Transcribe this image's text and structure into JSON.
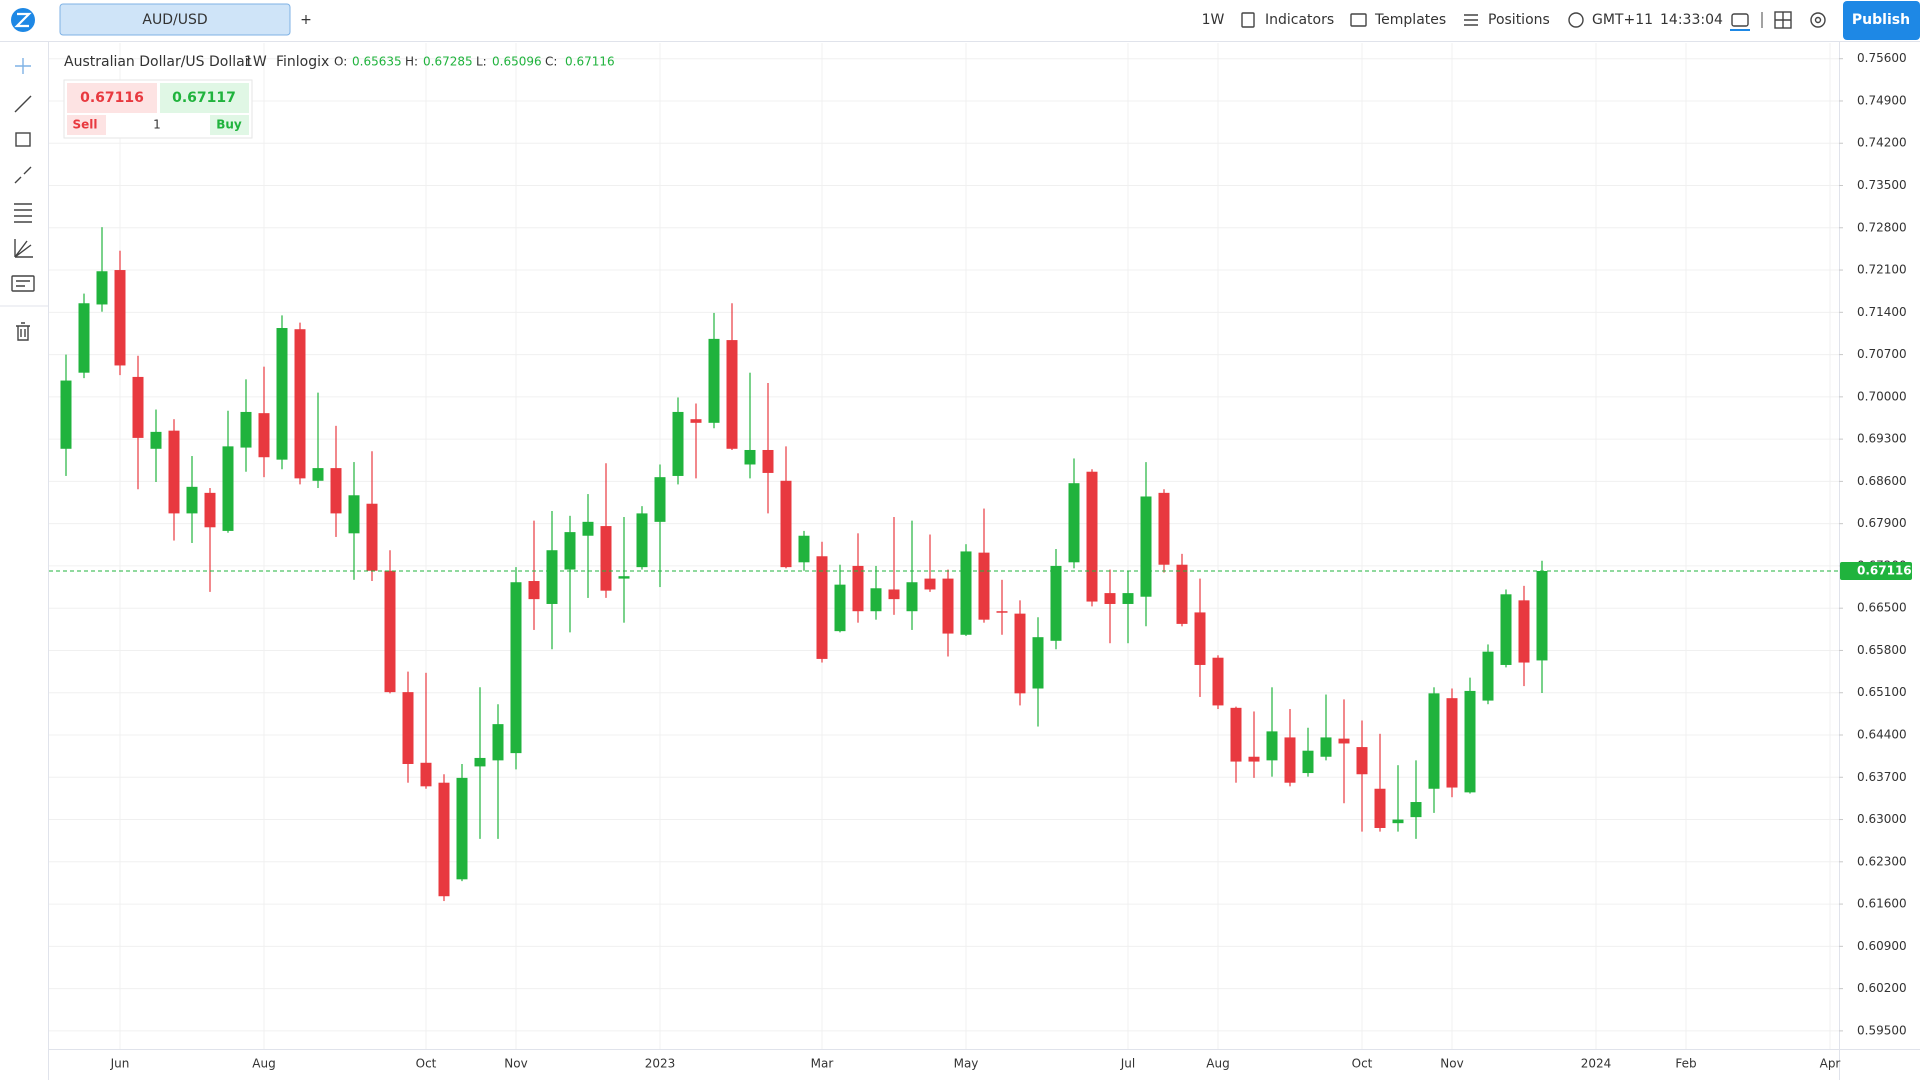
{
  "toolbar": {
    "symbol": "AUD/USD",
    "add": "+",
    "interval": "1W",
    "menu": [
      "Indicators",
      "Templates",
      "Positions"
    ],
    "timezone": "GMT+11",
    "time": "14:33:04",
    "publish": "Publish"
  },
  "trade": {
    "sell_label": "Sell",
    "buy_label": "Buy",
    "buy_price": 0.67117,
    "quantity": 1
  },
  "chart_data": {
    "type": "candlestick",
    "title": "Australian Dollar/US Dollar",
    "source": "Finlogix",
    "ohlc_labels": [
      "O:",
      "H:",
      "L:",
      "C:"
    ],
    "up_color": "#20b33d",
    "down_color": "#e8393f",
    "grid": true,
    "categories": [
      null,
      null,
      null,
      "Jun",
      null,
      null,
      null,
      null,
      null,
      null,
      null,
      "Aug",
      null,
      null,
      null,
      null,
      null,
      null,
      null,
      null,
      "Oct",
      null,
      null,
      null,
      null,
      "Nov",
      null,
      null,
      null,
      null,
      null,
      null,
      null,
      "2023",
      null,
      null,
      null,
      null,
      null,
      null,
      null,
      null,
      "Mar",
      null,
      null,
      null,
      null,
      null,
      null,
      null,
      "May",
      null,
      null,
      null,
      null,
      null,
      null,
      null,
      null,
      "Jul",
      null,
      null,
      null,
      null,
      "Aug",
      null,
      null,
      null,
      null,
      null,
      null,
      null,
      "Oct",
      null,
      null,
      null,
      null,
      "Nov",
      null,
      null,
      null,
      null,
      null,
      null,
      null,
      "2024",
      null,
      null,
      null,
      null,
      "Feb",
      null,
      null,
      null,
      null,
      null,
      null,
      null,
      "Apr"
    ],
    "open": [
      0.6914,
      0.704,
      0.7153,
      0.721,
      0.7033,
      0.6914,
      0.6944,
      0.6807,
      0.6841,
      0.6778,
      0.6916,
      0.6973,
      0.6896,
      0.7112,
      0.6861,
      0.6882,
      0.6774,
      0.6823,
      0.6712,
      0.6511,
      0.6394,
      0.6361,
      0.6201,
      0.6388,
      0.6398,
      0.641,
      0.6695,
      0.6657,
      0.6714,
      0.677,
      0.6786,
      0.6699,
      0.6718,
      0.6793,
      0.6869,
      0.6963,
      0.6957,
      0.7094,
      0.6888,
      0.6912,
      0.6861,
      0.6726,
      0.6736,
      0.6612,
      0.672,
      0.6645,
      0.6681,
      0.6645,
      0.6699,
      0.6699,
      0.6606,
      0.6742,
      0.6645,
      0.6641,
      0.6517,
      0.6596,
      0.6726,
      0.6876,
      0.6675,
      0.6657,
      0.6669,
      0.6841,
      0.6722,
      0.6643,
      0.6568,
      0.6485,
      0.6404,
      0.6398,
      0.6436,
      0.6377,
      0.6404,
      0.6434,
      0.642,
      0.6351,
      0.6294,
      0.6304,
      0.6351,
      0.6501,
      0.6345,
      0.6497,
      0.6556,
      0.6663,
      0.65635,
      null,
      null,
      null,
      null,
      null,
      null,
      null,
      null,
      null,
      null,
      null,
      null,
      null,
      null,
      null,
      null
    ],
    "high": [
      0.707,
      0.7171,
      0.7281,
      0.7242,
      0.7068,
      0.6979,
      0.6963,
      0.6902,
      0.6849,
      0.6977,
      0.7029,
      0.705,
      0.7135,
      0.7123,
      0.7007,
      0.6952,
      0.6892,
      0.691,
      0.6746,
      0.6545,
      0.6543,
      0.6375,
      0.6392,
      0.6519,
      0.6491,
      0.6718,
      0.6795,
      0.6811,
      0.6803,
      0.6839,
      0.689,
      0.6801,
      0.6819,
      0.6888,
      0.6999,
      0.6989,
      0.7139,
      0.7155,
      0.704,
      0.7023,
      0.6918,
      0.6778,
      0.676,
      0.6722,
      0.6774,
      0.672,
      0.6801,
      0.6795,
      0.6772,
      0.6714,
      0.6756,
      0.6815,
      0.6697,
      0.6663,
      0.6635,
      0.6748,
      0.6898,
      0.688,
      0.6714,
      0.6712,
      0.6892,
      0.6847,
      0.674,
      0.6699,
      0.6572,
      0.6487,
      0.6479,
      0.6519,
      0.6483,
      0.6452,
      0.6507,
      0.6499,
      0.6464,
      0.6442,
      0.639,
      0.6398,
      0.6519,
      0.6517,
      0.6535,
      0.659,
      0.6681,
      0.6687,
      0.67285,
      null,
      null,
      null,
      null,
      null,
      null,
      null,
      null,
      null,
      null,
      null,
      null,
      null,
      null,
      null,
      null
    ],
    "low": [
      0.6869,
      0.7031,
      0.7141,
      0.7036,
      0.6847,
      0.6859,
      0.6762,
      0.6758,
      0.6677,
      0.6775,
      0.6876,
      0.6867,
      0.688,
      0.6855,
      0.6849,
      0.6768,
      0.6697,
      0.6695,
      0.6509,
      0.6361,
      0.6351,
      0.6165,
      0.6198,
      0.6268,
      0.6268,
      0.6383,
      0.6614,
      0.6582,
      0.661,
      0.6667,
      0.6667,
      0.6626,
      0.6714,
      0.6685,
      0.6855,
      0.6865,
      0.6948,
      0.6912,
      0.6865,
      0.6807,
      0.6716,
      0.6712,
      0.656,
      0.661,
      0.6626,
      0.6631,
      0.6639,
      0.6614,
      0.6677,
      0.657,
      0.6604,
      0.6626,
      0.6606,
      0.6489,
      0.6454,
      0.6582,
      0.6716,
      0.6653,
      0.6592,
      0.6592,
      0.662,
      0.6709,
      0.662,
      0.6503,
      0.6483,
      0.6361,
      0.6369,
      0.6371,
      0.6355,
      0.6371,
      0.6398,
      0.6327,
      0.628,
      0.628,
      0.628,
      0.6268,
      0.6311,
      0.6337,
      0.6343,
      0.6491,
      0.6552,
      0.6521,
      0.65096,
      null,
      null,
      null,
      null,
      null,
      null,
      null,
      null,
      null,
      null,
      null,
      null,
      null,
      null,
      null,
      null
    ],
    "close": [
      0.7027,
      0.7155,
      0.7208,
      0.7052,
      0.6932,
      0.6942,
      0.6807,
      0.6851,
      0.6784,
      0.6918,
      0.6975,
      0.69,
      0.7114,
      0.6865,
      0.6882,
      0.6807,
      0.6837,
      0.6712,
      0.6511,
      0.6392,
      0.6355,
      0.6173,
      0.6369,
      0.6402,
      0.6458,
      0.6693,
      0.6665,
      0.6746,
      0.6776,
      0.6793,
      0.6679,
      0.6703,
      0.6807,
      0.6867,
      0.6975,
      0.6957,
      0.7096,
      0.6914,
      0.6912,
      0.6874,
      0.6718,
      0.677,
      0.6566,
      0.6689,
      0.6645,
      0.6683,
      0.6665,
      0.6693,
      0.6681,
      0.6608,
      0.6744,
      0.6631,
      0.6643,
      0.6509,
      0.6602,
      0.672,
      0.6857,
      0.6661,
      0.6657,
      0.6675,
      0.6835,
      0.6722,
      0.6624,
      0.6556,
      0.6489,
      0.6396,
      0.6396,
      0.6446,
      0.6361,
      0.6414,
      0.6436,
      0.6426,
      0.6375,
      0.6286,
      0.63,
      0.6329,
      0.6509,
      0.6353,
      0.6513,
      0.6578,
      0.6673,
      0.656,
      0.67116,
      null,
      null,
      null,
      null,
      null,
      null,
      null,
      null,
      null,
      null,
      null,
      null,
      null,
      null,
      null,
      null
    ],
    "ylim": [
      0.592,
      0.7586
    ],
    "yticks": [
      {
        "value": 0.756,
        "label": "0.75600"
      },
      {
        "value": 0.749,
        "label": "0.74900"
      },
      {
        "value": 0.742,
        "label": "0.74200"
      },
      {
        "value": 0.735,
        "label": "0.73500"
      },
      {
        "value": 0.728,
        "label": "0.72800"
      },
      {
        "value": 0.721,
        "label": "0.72100"
      },
      {
        "value": 0.714,
        "label": "0.71400"
      },
      {
        "value": 0.707,
        "label": "0.70700"
      },
      {
        "value": 0.7,
        "label": "0.70000"
      },
      {
        "value": 0.693,
        "label": "0.69300"
      },
      {
        "value": 0.686,
        "label": "0.68600"
      },
      {
        "value": 0.679,
        "label": "0.67900"
      },
      {
        "value": 0.672,
        "label": "0.67200"
      },
      {
        "value": 0.665,
        "label": "0.66500"
      },
      {
        "value": 0.658,
        "label": "0.65800"
      },
      {
        "value": 0.651,
        "label": "0.65100"
      },
      {
        "value": 0.644,
        "label": "0.64400"
      },
      {
        "value": 0.637,
        "label": "0.63700"
      },
      {
        "value": 0.63,
        "label": "0.63000"
      },
      {
        "value": 0.623,
        "label": "0.62300"
      },
      {
        "value": 0.616,
        "label": "0.61600"
      },
      {
        "value": 0.609,
        "label": "0.60900"
      },
      {
        "value": 0.602,
        "label": "0.60200"
      },
      {
        "value": 0.595,
        "label": "0.59500"
      }
    ]
  }
}
